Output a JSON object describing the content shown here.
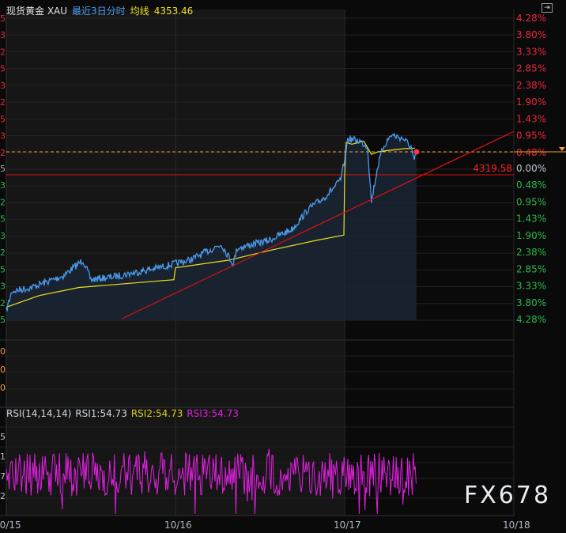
{
  "header": {
    "name": "现货黄金 XAU",
    "period": "最近3日分时",
    "ma_label": "均线",
    "ma_value": "4353.46"
  },
  "colors": {
    "up": "#e8283c",
    "down": "#2db84d",
    "price": "#4a9cf0",
    "ma": "#f0e020",
    "rsi1": "#d0d8e0",
    "rsi2": "#d8d020",
    "rsi3": "#e020e0",
    "trend": "#e01010",
    "current": "#f0a030"
  },
  "right_axis": {
    "up": [
      "4.28%",
      "3.80%",
      "3.33%",
      "2.85%",
      "2.38%",
      "1.90%",
      "1.43%",
      "0.95%",
      "0.48%"
    ],
    "zero": "0.00%",
    "down": [
      "0.48%",
      "0.95%",
      "1.43%",
      "1.90%",
      "2.38%",
      "2.85%",
      "3.33%",
      "3.80%",
      "4.28%"
    ]
  },
  "left_axis_partial": {
    "up": [
      "5",
      "3",
      "2",
      "5",
      "3",
      "2",
      "5",
      "3",
      "2"
    ],
    "zero": "5",
    "down": [
      "3",
      "2",
      "5",
      "3",
      "2",
      "5",
      "3",
      "2",
      "5"
    ],
    "volume": [
      "0",
      "0",
      "0"
    ],
    "rsi": [
      "5",
      "1",
      "7",
      "2"
    ]
  },
  "prev_close_label": "4319.58",
  "rsi": {
    "title": "RSI(14,14,14)",
    "rsi1": "RSI1:54.73",
    "rsi2": "RSI2:54.73",
    "rsi3": "RSI3:54.73"
  },
  "x_axis": [
    "10/15",
    "10/16",
    "10/17",
    "10/18"
  ],
  "watermark": "FX678",
  "chart_data": {
    "type": "line",
    "xlabel": "",
    "ylabel": "",
    "ylim_pct": [
      -4.28,
      4.28
    ],
    "x_range": [
      "10/15 00:00",
      "10/18 00:00"
    ],
    "series": [
      {
        "key": "price",
        "points": [
          [
            "10/15 00:00",
            -4.06
          ],
          [
            "10/15 00:47",
            -3.5
          ],
          [
            "10/15 03:35",
            -3.39
          ],
          [
            "10/15 08:04",
            -3.06
          ],
          [
            "10/15 10:53",
            -2.61
          ],
          [
            "10/15 12:00",
            -3.17
          ],
          [
            "10/15 15:55",
            -3.06
          ],
          [
            "10/15 21:32",
            -2.83
          ],
          [
            "10/16 02:01",
            -2.61
          ],
          [
            "10/16 06:30",
            -2.16
          ],
          [
            "10/16 08:11",
            -2.72
          ],
          [
            "10/16 08:45",
            -2.27
          ],
          [
            "10/16 13:14",
            -2.05
          ],
          [
            "10/16 16:36",
            -1.72
          ],
          [
            "10/16 18:50",
            -1.16
          ],
          [
            "10/16 21:05",
            -0.83
          ],
          [
            "10/16 22:46",
            -0.49
          ],
          [
            "10/16 23:33",
            -0.27
          ],
          [
            "10/17 00:27",
            0.85
          ],
          [
            "10/17 02:08",
            0.78
          ],
          [
            "10/17 03:15",
            0.62
          ],
          [
            "10/17 03:48",
            -0.94
          ],
          [
            "10/17 04:42",
            0.07
          ],
          [
            "10/17 05:29",
            0.62
          ],
          [
            "10/17 06:37",
            0.96
          ],
          [
            "10/17 08:18",
            0.85
          ],
          [
            "10/17 09:25",
            0.62
          ],
          [
            "10/17 09:52",
            0.18
          ],
          [
            "10/17 10:12",
            0.51
          ]
        ]
      },
      {
        "key": "ma",
        "points": [
          [
            "10/15 00:00",
            -3.95
          ],
          [
            "10/15 04:42",
            -3.62
          ],
          [
            "10/15 10:19",
            -3.39
          ],
          [
            "10/15 23:46",
            -3.17
          ],
          [
            "10/16 00:00",
            -2.83
          ],
          [
            "10/16 07:37",
            -2.61
          ],
          [
            "10/16 13:14",
            -2.34
          ],
          [
            "10/16 19:57",
            -2.05
          ],
          [
            "10/16 23:53",
            -1.9
          ],
          [
            "10/17 00:00",
            -0.18
          ],
          [
            "10/17 00:13",
            0.74
          ],
          [
            "10/17 01:01",
            0.69
          ],
          [
            "10/17 02:42",
            0.78
          ],
          [
            "10/17 03:48",
            0.4
          ],
          [
            "10/17 04:42",
            0.47
          ],
          [
            "10/17 06:04",
            0.51
          ],
          [
            "10/17 08:18",
            0.56
          ],
          [
            "10/17 09:58",
            0.58
          ]
        ]
      }
    ],
    "trendline": [
      [
        "10/15 16:24",
        -4.28
      ],
      [
        "10/18 00:00",
        0.67
      ]
    ],
    "current_pct": 0.48
  }
}
